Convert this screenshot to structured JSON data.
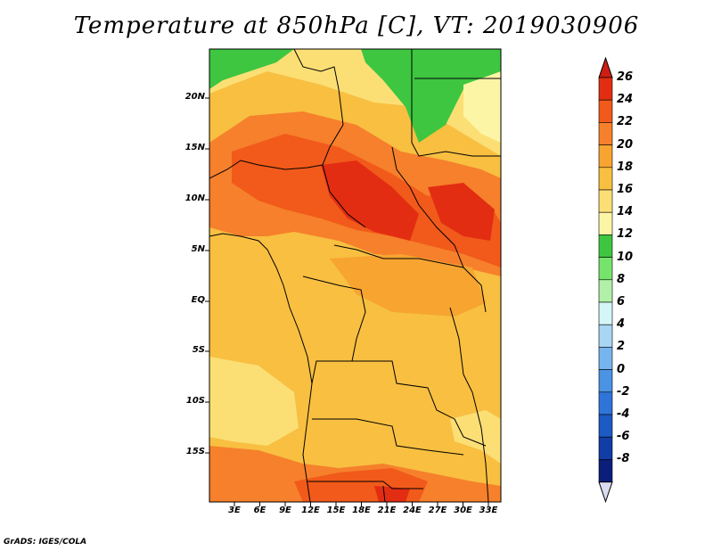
{
  "title": "Temperature at 850hPa [C], VT: 2019030906",
  "credit": "GrADS: IGES/COLA",
  "lat_labels": [
    "20N",
    "15N",
    "10N",
    "5N",
    "EQ",
    "5S",
    "10S",
    "15S"
  ],
  "lon_labels": [
    "3E",
    "6E",
    "9E",
    "12E",
    "15E",
    "18E",
    "21E",
    "24E",
    "27E",
    "30E",
    "33E"
  ],
  "colorbar": {
    "labels": [
      "26",
      "24",
      "22",
      "20",
      "18",
      "16",
      "14",
      "12",
      "10",
      "8",
      "6",
      "4",
      "2",
      "0",
      "-2",
      "-4",
      "-6",
      "-8"
    ],
    "colors": [
      "#e22d12",
      "#f15a1a",
      "#f6802b",
      "#f7a431",
      "#f8bf41",
      "#fbdf75",
      "#fdf5a6",
      "#3ec640",
      "#76e36b",
      "#b1f0a8",
      "#d4f6f6",
      "#a9d6f2",
      "#77b5ee",
      "#4a93e5",
      "#2f75d9",
      "#1c5ac4",
      "#113da6",
      "#0b1e7a"
    ],
    "over_color": "#cc1e12",
    "under_color": "#dcdcf0"
  }
}
